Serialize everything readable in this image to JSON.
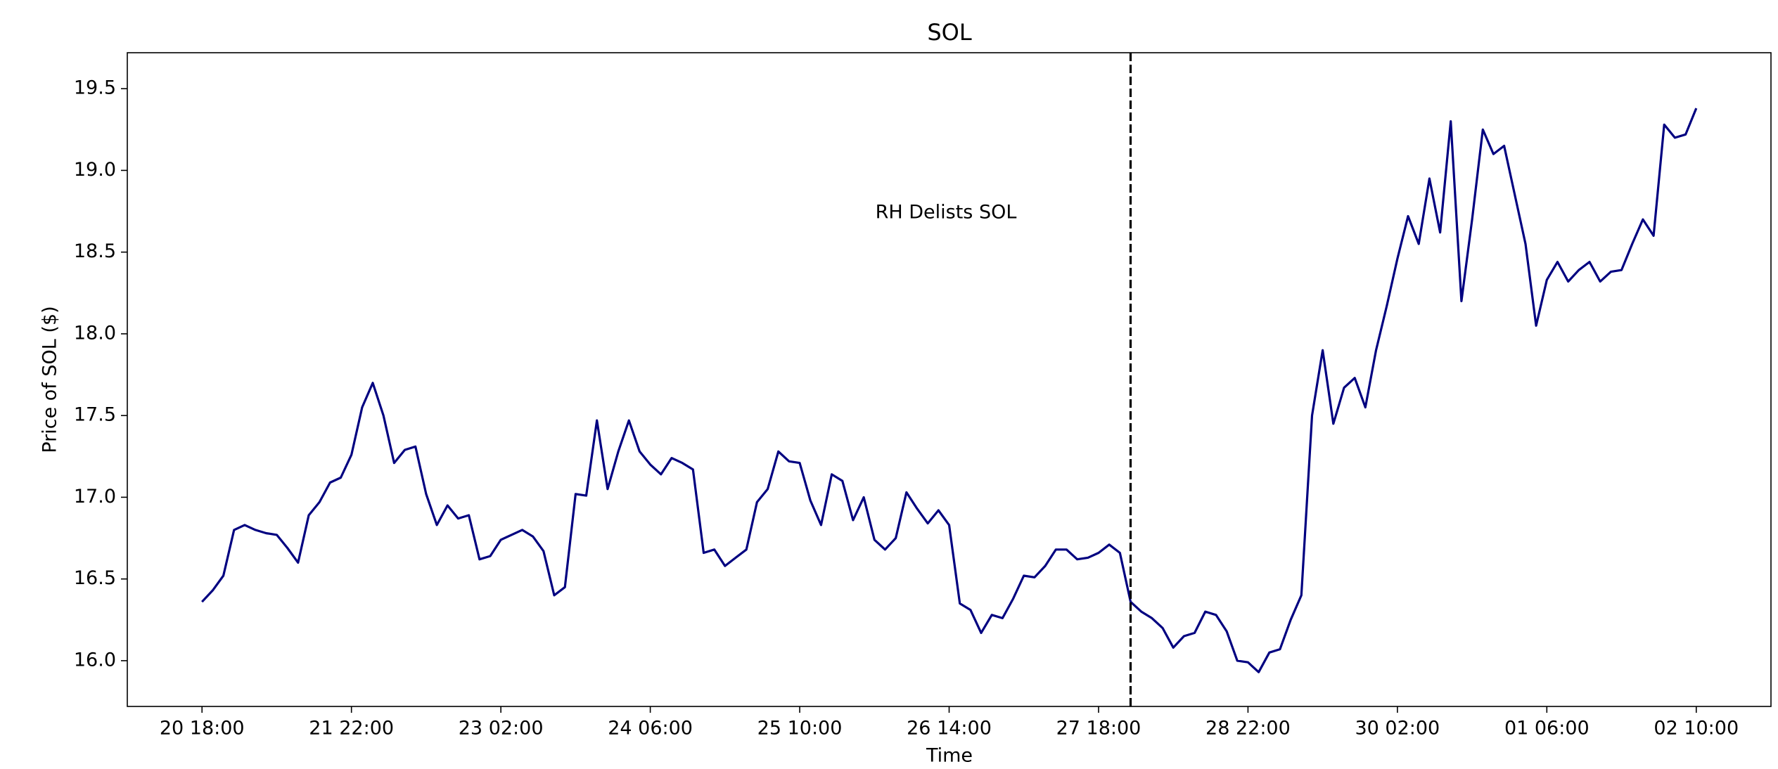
{
  "chart_data": {
    "type": "line",
    "title": "SOL",
    "xlabel": "Time",
    "ylabel": "Price of SOL ($)",
    "annotation": "RH Delists SOL",
    "marker_line_x": "28 00:00",
    "color": "#000080",
    "x": [
      "20 18:00",
      "20 20:00",
      "20 22:00",
      "21 00:00",
      "21 02:00",
      "21 04:00",
      "21 06:00",
      "21 08:00",
      "21 10:00",
      "21 12:00",
      "21 14:00",
      "21 16:00",
      "21 18:00",
      "21 20:00",
      "21 22:00",
      "22 00:00",
      "22 02:00",
      "22 04:00",
      "22 06:00",
      "22 08:00",
      "22 10:00",
      "22 12:00",
      "22 14:00",
      "22 16:00",
      "22 18:00",
      "22 20:00",
      "22 22:00",
      "23 00:00",
      "23 02:00",
      "23 04:00",
      "23 06:00",
      "23 08:00",
      "23 10:00",
      "23 12:00",
      "23 14:00",
      "23 16:00",
      "23 18:00",
      "23 20:00",
      "23 22:00",
      "24 00:00",
      "24 02:00",
      "24 04:00",
      "24 06:00",
      "24 08:00",
      "24 10:00",
      "24 12:00",
      "24 14:00",
      "24 16:00",
      "24 18:00",
      "24 20:00",
      "24 22:00",
      "25 00:00",
      "25 02:00",
      "25 04:00",
      "25 06:00",
      "25 08:00",
      "25 10:00",
      "25 12:00",
      "25 14:00",
      "25 16:00",
      "25 18:00",
      "25 20:00",
      "25 22:00",
      "26 00:00",
      "26 02:00",
      "26 04:00",
      "26 06:00",
      "26 08:00",
      "26 10:00",
      "26 12:00",
      "26 14:00",
      "26 16:00",
      "26 18:00",
      "26 20:00",
      "26 22:00",
      "27 00:00",
      "27 02:00",
      "27 04:00",
      "27 06:00",
      "27 08:00",
      "27 10:00",
      "27 12:00",
      "27 14:00",
      "27 16:00",
      "27 18:00",
      "27 20:00",
      "27 22:00",
      "28 00:00",
      "28 02:00",
      "28 04:00",
      "28 06:00",
      "28 08:00",
      "28 10:00",
      "28 12:00",
      "28 14:00",
      "28 16:00",
      "28 18:00",
      "28 20:00",
      "28 22:00",
      "29 00:00",
      "29 02:00",
      "29 04:00",
      "29 06:00",
      "29 08:00",
      "29 10:00",
      "29 12:00",
      "29 14:00",
      "29 16:00",
      "29 18:00",
      "29 20:00",
      "29 22:00",
      "30 00:00",
      "30 02:00",
      "30 04:00",
      "30 06:00",
      "30 08:00",
      "30 10:00",
      "30 12:00",
      "30 14:00",
      "30 16:00",
      "30 18:00",
      "30 20:00",
      "30 22:00",
      "01 00:00",
      "01 02:00",
      "01 04:00",
      "01 06:00",
      "01 08:00",
      "01 10:00",
      "01 12:00",
      "01 14:00",
      "01 16:00",
      "01 18:00",
      "01 20:00",
      "01 22:00",
      "02 00:00",
      "02 02:00",
      "02 04:00",
      "02 06:00",
      "02 08:00",
      "02 10:00"
    ],
    "values": [
      16.36,
      16.43,
      16.52,
      16.8,
      16.83,
      16.8,
      16.78,
      16.77,
      16.69,
      16.6,
      16.89,
      16.97,
      17.09,
      17.12,
      17.26,
      17.55,
      17.7,
      17.5,
      17.21,
      17.29,
      17.31,
      17.02,
      16.83,
      16.95,
      16.87,
      16.89,
      16.62,
      16.64,
      16.74,
      16.77,
      16.8,
      16.76,
      16.67,
      16.4,
      16.45,
      17.02,
      17.01,
      17.47,
      17.05,
      17.28,
      17.47,
      17.28,
      17.2,
      17.14,
      17.24,
      17.21,
      17.17,
      16.66,
      16.68,
      16.58,
      16.63,
      16.68,
      16.97,
      17.05,
      17.28,
      17.22,
      17.21,
      16.98,
      16.83,
      17.14,
      17.1,
      16.86,
      17.0,
      16.74,
      16.68,
      16.75,
      17.03,
      16.93,
      16.84,
      16.92,
      16.83,
      16.35,
      16.31,
      16.17,
      16.28,
      16.26,
      16.38,
      16.52,
      16.51,
      16.58,
      16.68,
      16.68,
      16.62,
      16.63,
      16.66,
      16.71,
      16.66,
      16.36,
      16.3,
      16.26,
      16.2,
      16.08,
      16.15,
      16.17,
      16.3,
      16.28,
      16.18,
      16.0,
      15.99,
      15.93,
      16.05,
      16.07,
      16.25,
      16.4,
      17.5,
      17.9,
      17.45,
      17.67,
      17.73,
      17.55,
      17.9,
      18.17,
      18.46,
      18.72,
      18.55,
      18.95,
      18.62,
      19.3,
      18.2,
      18.7,
      19.25,
      19.1,
      19.15,
      18.85,
      18.55,
      18.05,
      18.33,
      18.44,
      18.32,
      18.39,
      18.44,
      18.32,
      18.38,
      18.39,
      18.55,
      18.7,
      18.6,
      19.28,
      19.2,
      19.22,
      19.38
    ],
    "xticks": [
      "20 18:00",
      "21 22:00",
      "23 02:00",
      "24 06:00",
      "25 10:00",
      "26 14:00",
      "27 18:00",
      "28 22:00",
      "30 02:00",
      "01 06:00",
      "02 10:00"
    ],
    "ylim": [
      15.72,
      19.72
    ],
    "yticks": [
      {
        "value": 16,
        "label": "16.0"
      },
      16.5,
      {
        "value": 17,
        "label": "17.0"
      },
      17.5,
      {
        "value": 18,
        "label": "18.0"
      },
      18.5,
      {
        "value": 19,
        "label": "19.0"
      },
      19.5
    ]
  }
}
